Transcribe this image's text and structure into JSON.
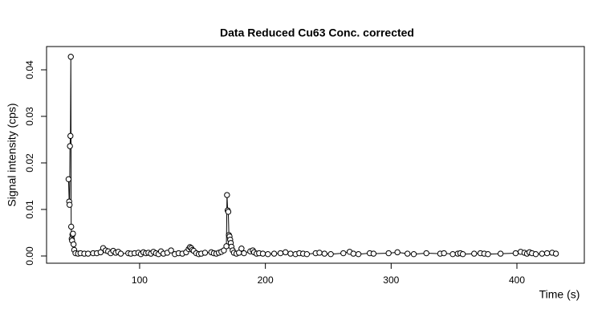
{
  "chart_data": {
    "type": "scatter-line",
    "title": "Data Reduced Cu63 Conc. corrected",
    "x_label": "Time (s)",
    "y_label": "Signal intensity (cps)",
    "xlim": [
      26,
      453.6
    ],
    "ylim": [
      -0.00155,
      0.045
    ],
    "xticks": [
      100,
      200,
      300,
      400
    ],
    "yticks": [
      {
        "value": 0,
        "label": "0.00"
      },
      0.01,
      0.02,
      0.03,
      0.04
    ],
    "color": "#000000",
    "x": [
      43.5,
      44,
      44.3,
      44.6,
      45,
      45.3,
      45.6,
      46,
      46.3,
      46.6,
      47,
      47.5,
      48,
      49,
      51,
      53,
      56,
      59,
      63,
      66,
      69,
      71,
      73,
      75,
      77,
      79,
      81,
      83,
      85,
      91,
      93,
      96,
      99,
      101,
      103,
      105,
      107,
      109,
      111,
      113,
      115,
      117,
      119,
      122,
      125,
      128,
      131,
      134,
      137,
      139,
      140,
      141,
      142,
      143,
      145,
      147,
      149,
      152,
      157,
      159,
      161,
      163,
      165,
      167,
      169,
      169.5,
      170,
      170.5,
      171,
      171.5,
      172,
      172.5,
      173,
      174,
      175,
      177,
      179,
      181,
      183,
      188,
      190,
      191,
      193,
      195,
      198,
      202,
      207,
      212,
      216,
      220,
      224,
      227,
      230,
      233,
      240,
      243,
      247,
      252,
      262,
      267,
      270,
      274,
      283,
      286,
      298,
      305,
      313,
      318,
      328,
      339,
      342,
      349,
      353,
      355,
      357,
      366,
      371,
      374,
      377,
      387,
      399,
      403,
      406,
      408,
      410,
      412,
      415,
      420,
      424,
      428,
      431
    ],
    "values": [
      0.0165,
      0.0117,
      0.011,
      0.0236,
      0.0258,
      0.0428,
      0.0063,
      0.0037,
      0.0033,
      0.0046,
      0.0048,
      0.0025,
      0.0013,
      0.0006,
      0.0005,
      0.0006,
      0.0005,
      0.0005,
      0.0006,
      0.0006,
      0.0008,
      0.0017,
      0.0012,
      0.001,
      0.0006,
      0.0011,
      0.0007,
      0.0009,
      0.0005,
      0.0006,
      0.0005,
      0.0006,
      0.0007,
      0.0004,
      0.0008,
      0.0006,
      0.0007,
      0.0005,
      0.0009,
      0.0006,
      0.0004,
      0.001,
      0.0005,
      0.0007,
      0.0012,
      0.0004,
      0.0006,
      0.0005,
      0.0008,
      0.0015,
      0.0019,
      0.0017,
      0.0013,
      0.0011,
      0.0006,
      0.0004,
      0.0005,
      0.0007,
      0.0008,
      0.0006,
      0.0005,
      0.0007,
      0.0009,
      0.0012,
      0.0021,
      0.0131,
      0.0098,
      0.0095,
      0.0045,
      0.0042,
      0.0035,
      0.0028,
      0.002,
      0.0012,
      0.0007,
      0.0005,
      0.0007,
      0.0016,
      0.0006,
      0.001,
      0.0012,
      0.0008,
      0.0005,
      0.0006,
      0.0005,
      0.0004,
      0.0005,
      0.0006,
      0.0008,
      0.0005,
      0.0004,
      0.0006,
      0.0005,
      0.0004,
      0.0006,
      0.0007,
      0.0005,
      0.0004,
      0.0006,
      0.0009,
      0.0005,
      0.0004,
      0.0006,
      0.0005,
      0.0006,
      0.0008,
      0.0005,
      0.0004,
      0.0006,
      0.0005,
      0.0006,
      0.0004,
      0.0005,
      0.0006,
      0.0004,
      0.0005,
      0.0006,
      0.0005,
      0.0004,
      0.0005,
      0.0006,
      0.0009,
      0.0007,
      0.0005,
      0.0008,
      0.0006,
      0.0004,
      0.0005,
      0.0006,
      0.0007,
      0.0005
    ]
  }
}
